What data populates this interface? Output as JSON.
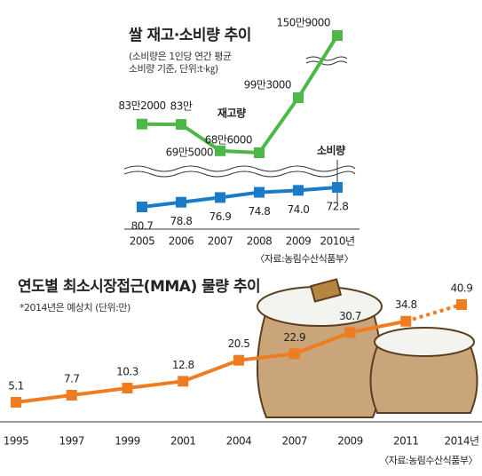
{
  "chart_data": [
    {
      "type": "line",
      "title": "쌀 재고·소비량 추이",
      "subtitle": [
        "(소비량은 1인당 연간 평균",
        "소비량 기준, 단위:t·㎏)"
      ],
      "categories": [
        "2005",
        "2006",
        "2007",
        "2008",
        "2009",
        "2010년"
      ],
      "series": [
        {
          "name": "재고량",
          "color": "#4db848",
          "log_scale": true,
          "values": [
            832000,
            830000,
            695000,
            686000,
            993000,
            1509000
          ],
          "value_labels": [
            "83만2000",
            "83만",
            "69만5000",
            "68만6000",
            "99만3000",
            "150만9000"
          ]
        },
        {
          "name": "소비량",
          "color": "#1a7cc6",
          "values": [
            80.7,
            78.8,
            76.9,
            74.8,
            74.0,
            72.8
          ],
          "value_labels": [
            "80.7",
            "78.8",
            "76.9",
            "74.8",
            "74.0",
            "72.8"
          ]
        }
      ],
      "source": "〈자료:농림수산식품부〉"
    },
    {
      "type": "line",
      "title": "연도별 최소시장접근(MMA) 물량 추이",
      "subtitle": [
        "*2014년은 예상치 (단위:만)"
      ],
      "categories": [
        "1995",
        "1997",
        "1999",
        "2001",
        "2004",
        "2007",
        "2009",
        "2011",
        "2014년"
      ],
      "series": [
        {
          "color": "#f07c22",
          "dashed_last_segment": true,
          "values": [
            5.1,
            7.7,
            10.3,
            12.8,
            20.5,
            22.9,
            30.7,
            34.8,
            40.9
          ]
        }
      ],
      "source": "〈자료:농림수산식품부〉"
    }
  ]
}
